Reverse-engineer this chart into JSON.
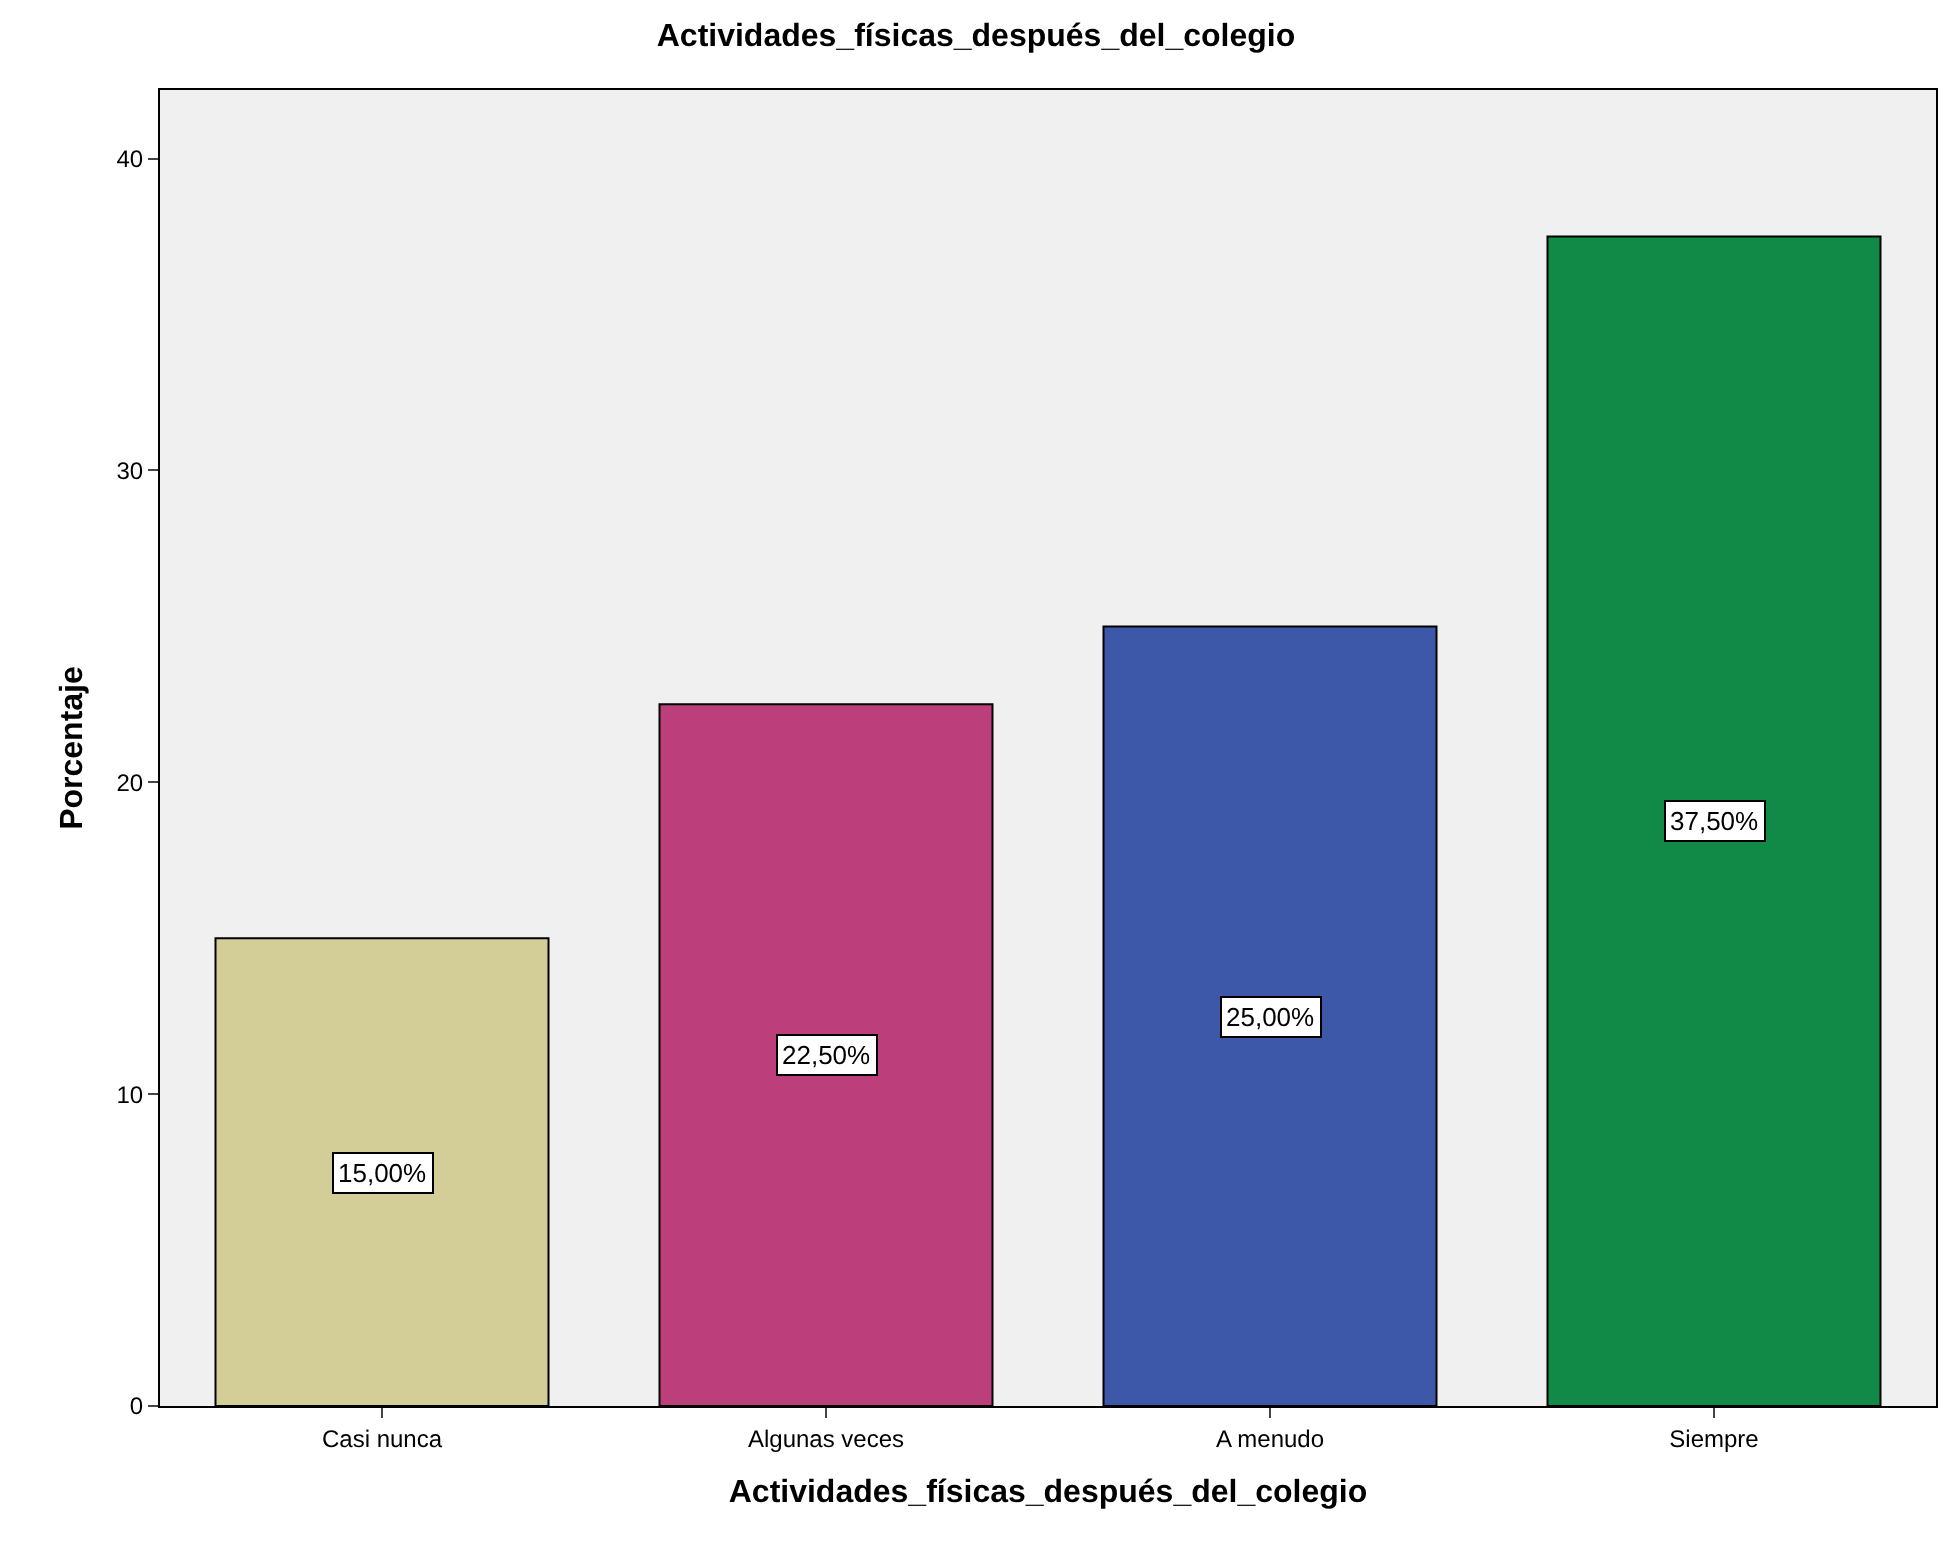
{
  "chart_data": {
    "type": "bar",
    "title": "Actividades_físicas_después_del_colegio",
    "xlabel": "Actividades_físicas_después_del_colegio",
    "ylabel": "Porcentaje",
    "categories": [
      "Casi nunca",
      "Algunas veces",
      "A menudo",
      "Siempre"
    ],
    "values": [
      15,
      22.5,
      25,
      37.5
    ],
    "colors": [
      "#d3ce97",
      "#bc3f7b",
      "#3d58a8",
      "#128a47"
    ],
    "value_labels": [
      "15,00%",
      "22,50%",
      "25,00%",
      "37,50%"
    ],
    "ylim": [
      0,
      42.2
    ],
    "yticks": [
      0,
      10,
      20,
      30,
      40
    ],
    "grid": false
  }
}
